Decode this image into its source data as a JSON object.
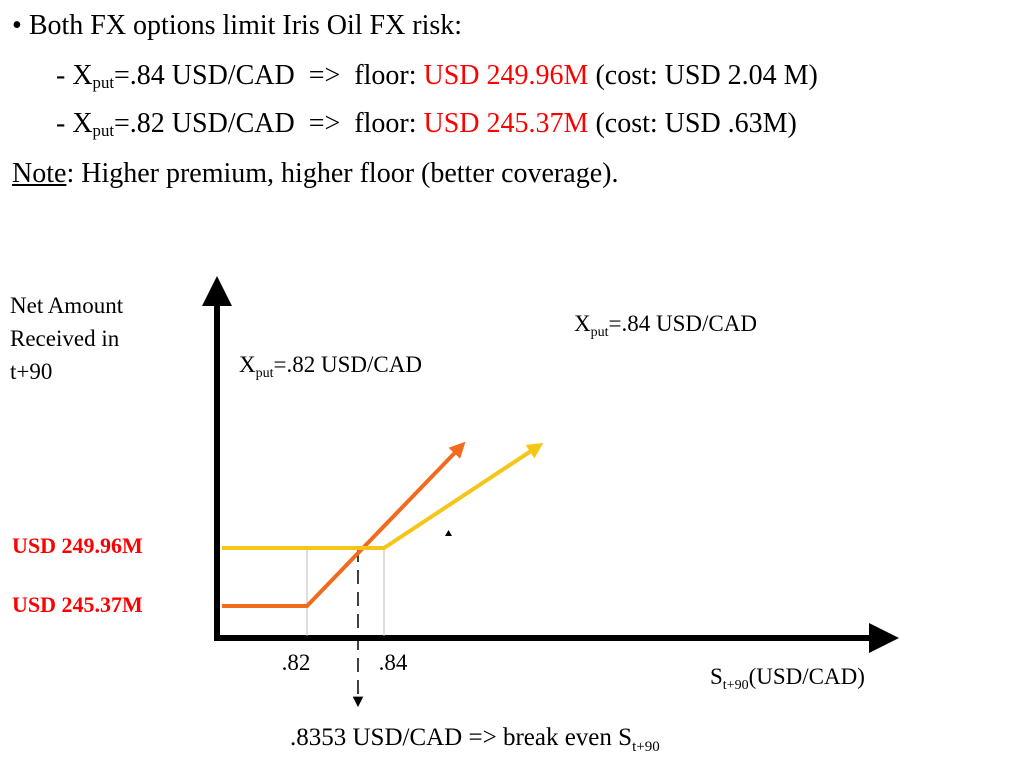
{
  "bullet": {
    "symbol": "•",
    "text": "Both FX options limit Iris Oil FX risk:"
  },
  "put84": {
    "dash": "- X",
    "sub": "put",
    "strike": "=.84 USD/CAD",
    "arrow": "=>",
    "floor_label": "floor:",
    "floor_value": "USD 249.96M",
    "cost": "(cost: USD 2.04 M)"
  },
  "put82": {
    "dash": "- X",
    "sub": "put",
    "strike": "=.82 USD/CAD",
    "arrow": "=>",
    "floor_label": "floor:",
    "floor_value": "USD 245.37M",
    "cost": "(cost: USD .63M)"
  },
  "note": {
    "label": "Note",
    "text": ": Higher premium, higher floor (better coverage)."
  },
  "chart_data": {
    "type": "line",
    "ylabel": [
      "Net Amount",
      "Received in",
      "t+90"
    ],
    "xlabel": {
      "main": "S",
      "sub": "t+90",
      "unit": "(USD/CAD)"
    },
    "y_ticks": [
      "USD 249.96M",
      "USD 245.37M"
    ],
    "x_ticks": [
      ".82",
      ".84"
    ],
    "series": [
      {
        "name": "X=.82 USD/CAD",
        "label": {
          "main": "X",
          "sub": "put",
          "rest": "=.82 USD/CAD"
        },
        "color": "#f26b1d",
        "strike": 0.82,
        "floor": 245.37,
        "points": [
          [
            0.8,
            245.37
          ],
          [
            0.82,
            245.37
          ],
          [
            0.86,
            258.0
          ]
        ]
      },
      {
        "name": "X=.84 USD/CAD",
        "label": {
          "main": "X",
          "sub": "put",
          "rest": "=.84 USD/CAD"
        },
        "color": "#f5c518",
        "strike": 0.84,
        "floor": 249.96,
        "points": [
          [
            0.8,
            249.96
          ],
          [
            0.84,
            249.96
          ],
          [
            0.88,
            258.0
          ]
        ]
      }
    ],
    "breakeven": {
      "value": 0.8353,
      "label_pre": ".8353 USD/CAD => break even S",
      "label_sub": "t+90"
    }
  }
}
